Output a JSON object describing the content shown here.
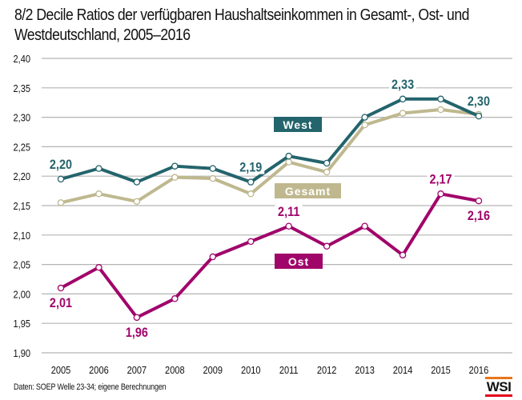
{
  "title_lines": [
    "8/2 Decile Ratios der verfügbaren Haushaltseinkommen in Gesamt-, Ost- und",
    "Westdeutschland, 2005–2016"
  ],
  "source": "Daten: SOEP Welle 23-34; eigene Berechnungen",
  "logo": "WSI",
  "colors": {
    "west": "#24646c",
    "gesamt": "#bfb88f",
    "ost": "#a0056a",
    "grid": "#b4b4b4",
    "logo_top": "#e8751a",
    "logo_bottom": "#e3001b"
  },
  "chart_data": {
    "type": "line",
    "title": "8/2 Decile Ratios der verfügbaren Haushaltseinkommen in Gesamt-, Ost- und Westdeutschland, 2005–2016",
    "xlabel": "",
    "ylabel": "",
    "ylim": [
      1.9,
      2.4
    ],
    "grid": true,
    "yticks": [
      1.9,
      1.95,
      2.0,
      2.05,
      2.1,
      2.15,
      2.2,
      2.25,
      2.3,
      2.35,
      2.4
    ],
    "ytick_labels": [
      "1,90",
      "1,95",
      "2,00",
      "2,05",
      "2,10",
      "2,15",
      "2,20",
      "2,25",
      "2,30",
      "2,35",
      "2,40"
    ],
    "categories": [
      "2005",
      "2006",
      "2007",
      "2008",
      "2009",
      "2010",
      "2011",
      "2012",
      "2013",
      "2014",
      "2015",
      "2016"
    ],
    "series": [
      {
        "name": "Gesamt",
        "color_key": "gesamt",
        "values": [
          2.155,
          2.17,
          2.157,
          2.198,
          2.196,
          2.17,
          2.224,
          2.207,
          2.287,
          2.307,
          2.313,
          2.305
        ],
        "legend_label": "Gesamt",
        "annotations": []
      },
      {
        "name": "West",
        "color_key": "west",
        "values": [
          2.195,
          2.213,
          2.19,
          2.217,
          2.213,
          2.19,
          2.234,
          2.222,
          2.3,
          2.331,
          2.331,
          2.302
        ],
        "legend_label": "West",
        "annotations": [
          {
            "category": "2005",
            "text": "2,20",
            "position": "above"
          },
          {
            "category": "2010",
            "text": "2,19",
            "position": "above"
          },
          {
            "category": "2014",
            "text": "2,33",
            "position": "above"
          },
          {
            "category": "2016",
            "text": "2,30",
            "position": "above"
          }
        ]
      },
      {
        "name": "Ost",
        "color_key": "ost",
        "values": [
          2.01,
          2.045,
          1.96,
          1.992,
          2.063,
          2.089,
          2.115,
          2.081,
          2.115,
          2.066,
          2.17,
          2.158
        ],
        "legend_label": "Ost",
        "annotations": [
          {
            "category": "2005",
            "text": "2,01",
            "position": "below"
          },
          {
            "category": "2007",
            "text": "1,96",
            "position": "below"
          },
          {
            "category": "2011",
            "text": "2,11",
            "position": "above"
          },
          {
            "category": "2015",
            "text": "2,17",
            "position": "above"
          },
          {
            "category": "2016",
            "text": "2,16",
            "position": "below"
          }
        ]
      }
    ],
    "legend": "inline labels (West above lines center, Gesamt below West, Ost lower center)"
  }
}
